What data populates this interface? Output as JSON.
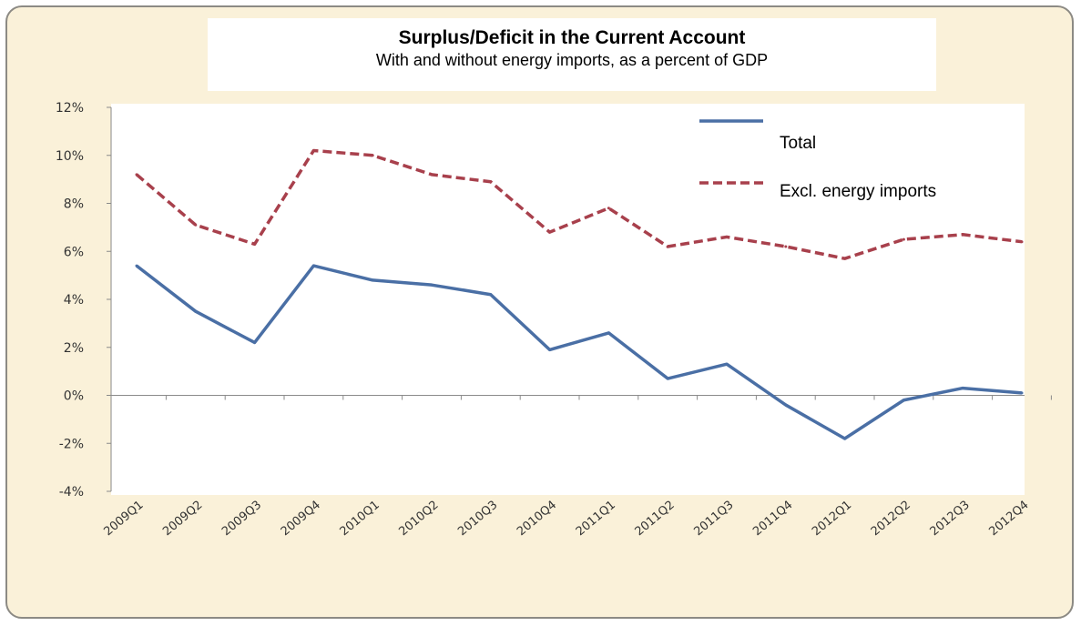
{
  "chart_data": {
    "type": "line",
    "title": "Surplus/Deficit in the Current Account",
    "subtitle": "With and without energy imports, as a percent of GDP",
    "categories": [
      "2009Q1",
      "2009Q2",
      "2009Q3",
      "2009Q4",
      "2010Q1",
      "2010Q2",
      "2010Q3",
      "2010Q4",
      "2011Q1",
      "2011Q2",
      "2011Q3",
      "2011Q4",
      "2012Q1",
      "2012Q2",
      "2012Q3",
      "2012Q4"
    ],
    "y_ticks": [
      "12%",
      "10%",
      "8%",
      "6%",
      "4%",
      "2%",
      "0%",
      "-2%",
      "-4%"
    ],
    "ylim": [
      -4,
      12
    ],
    "series": [
      {
        "name": "Total",
        "color": "#4a6fa5",
        "style": "solid",
        "values": [
          5.4,
          3.5,
          2.2,
          5.4,
          4.8,
          4.6,
          4.2,
          1.9,
          2.6,
          0.7,
          1.3,
          -0.4,
          -1.8,
          -0.2,
          0.3,
          0.1
        ]
      },
      {
        "name": "Excl. energy imports",
        "color": "#a8404c",
        "style": "dashed",
        "values": [
          9.2,
          7.1,
          6.3,
          10.2,
          10.0,
          9.2,
          8.9,
          6.8,
          7.8,
          6.2,
          6.6,
          6.2,
          5.7,
          6.5,
          6.7,
          6.4
        ]
      }
    ],
    "legend_position": "top-right",
    "grid": false
  }
}
